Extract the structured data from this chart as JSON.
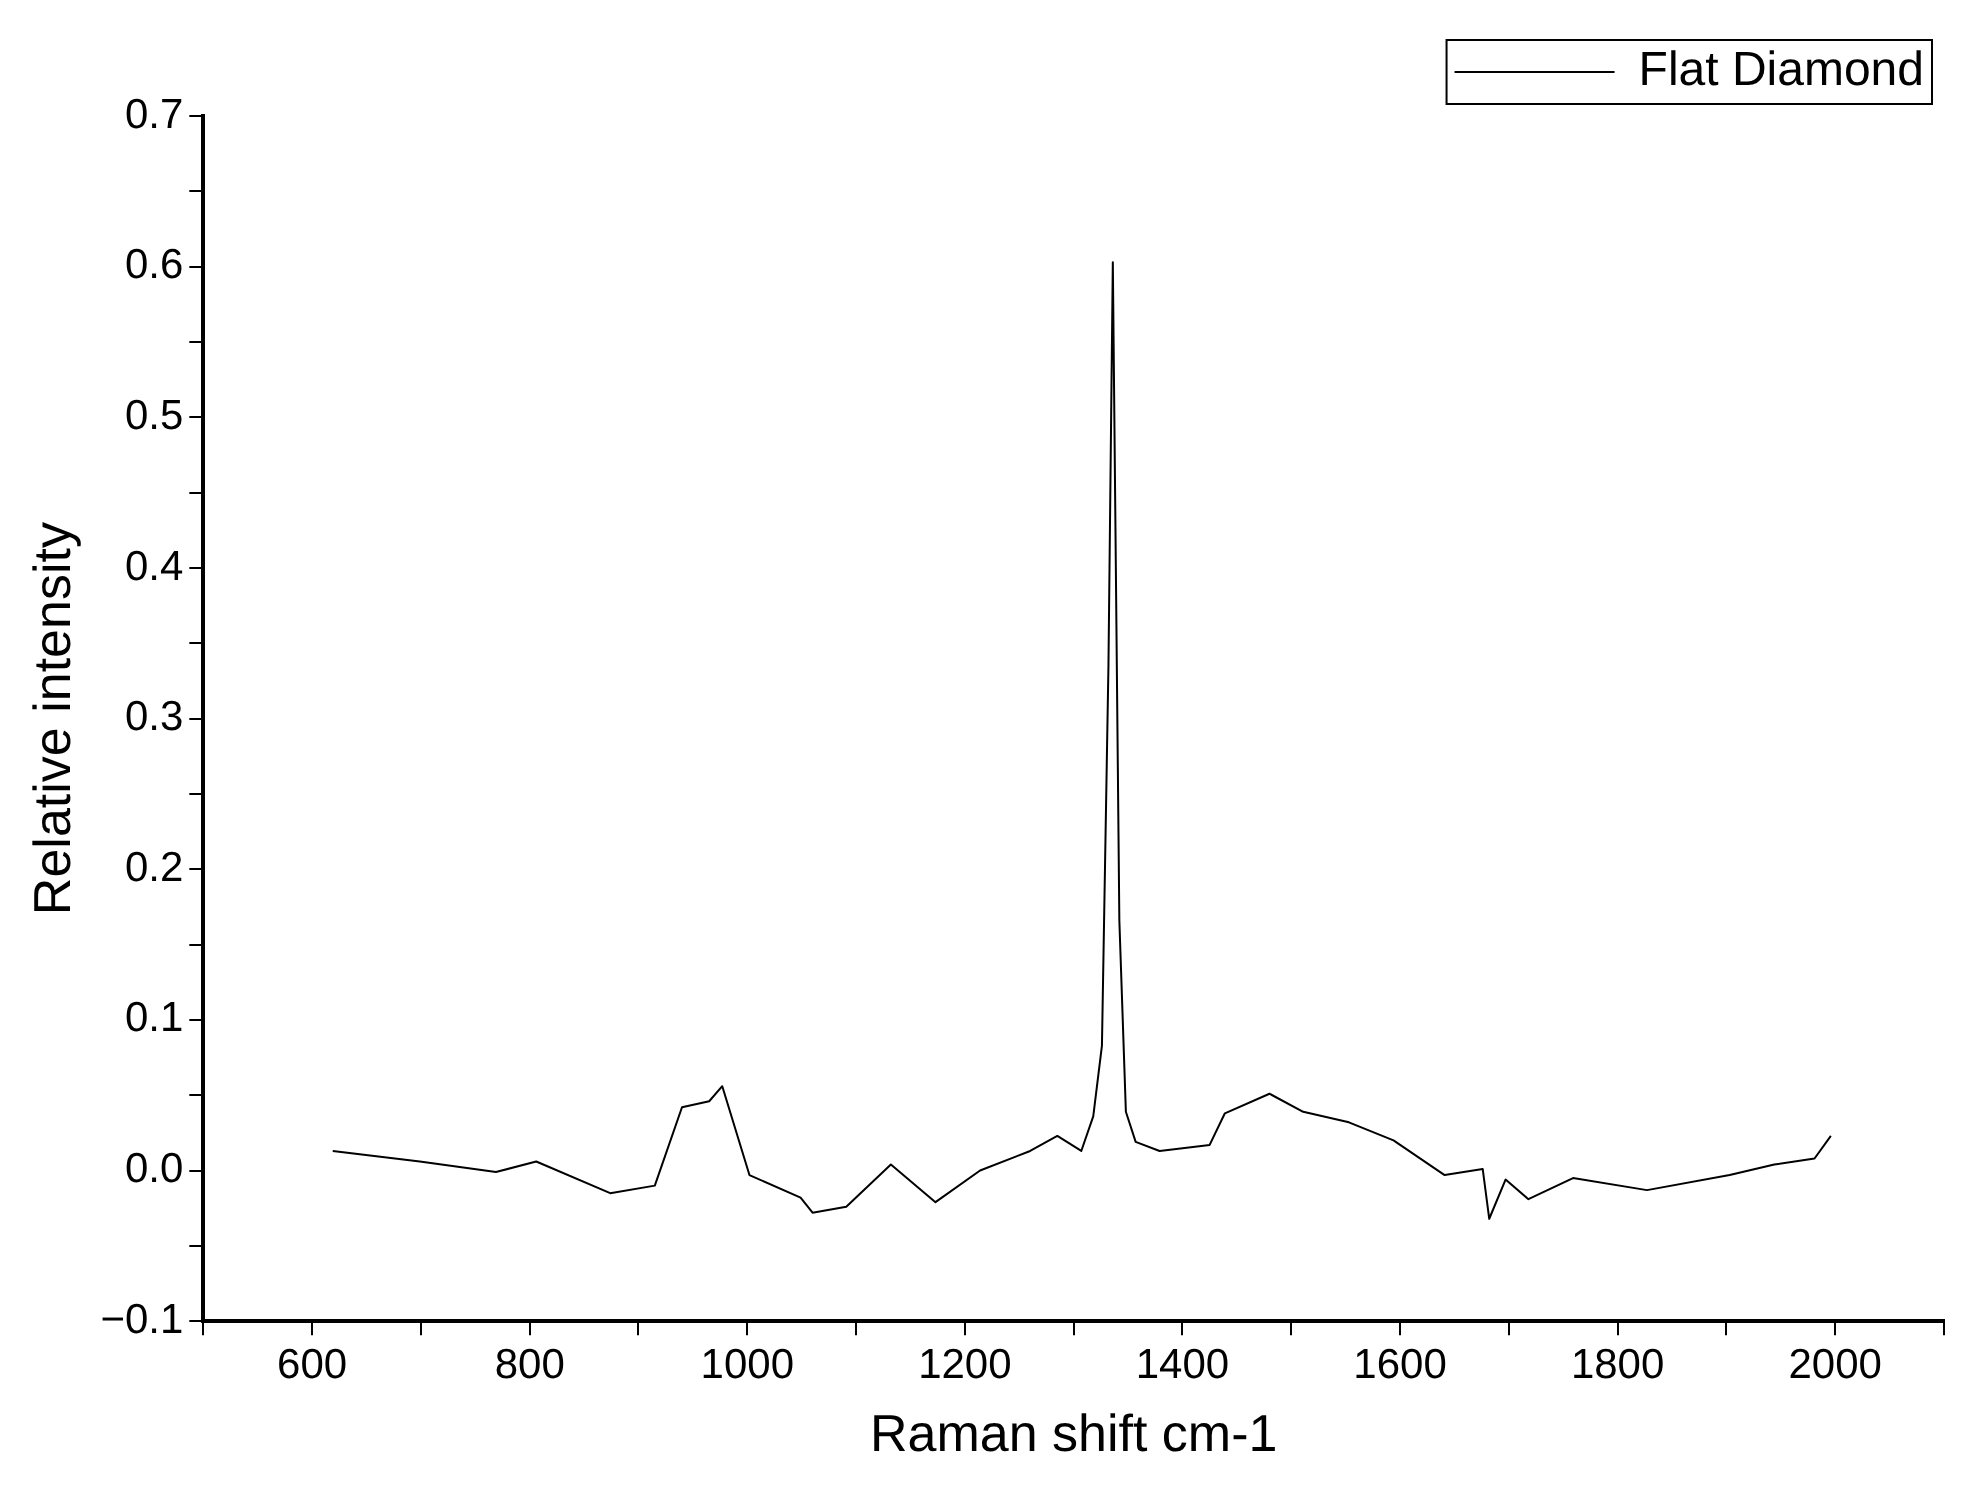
{
  "chart_data": {
    "type": "line",
    "xlabel": "Raman shift cm-1",
    "ylabel": "Relative intensity",
    "xlim": [
      500,
      2100
    ],
    "ylim": [
      -0.1,
      0.7
    ],
    "xticks": [
      {
        "value": 500,
        "label": null
      },
      600,
      {
        "value": 700,
        "label": null
      },
      800,
      {
        "value": 900,
        "label": null
      },
      1000,
      {
        "value": 1100,
        "label": null
      },
      1200,
      {
        "value": 1300,
        "label": null
      },
      1400,
      {
        "value": 1500,
        "label": null
      },
      1600,
      {
        "value": 1700,
        "label": null
      },
      1800,
      {
        "value": 1900,
        "label": null
      },
      2000,
      {
        "value": 2100,
        "label": null
      }
    ],
    "yticks": [
      {
        "value": -0.1,
        "label": "−0.1"
      },
      {
        "value": -0.05,
        "label": null
      },
      {
        "value": 0,
        "label": "0.0"
      },
      {
        "value": 0.05,
        "label": null
      },
      0.1,
      {
        "value": 0.15,
        "label": null
      },
      0.2,
      {
        "value": 0.25,
        "label": null
      },
      0.3,
      {
        "value": 0.35,
        "label": null
      },
      0.4,
      {
        "value": 0.45,
        "label": null
      },
      0.5,
      {
        "value": 0.55,
        "label": null
      },
      0.6,
      {
        "value": 0.65,
        "label": null
      },
      0.7
    ],
    "grid": false,
    "legend": "top right",
    "marker": "none",
    "line_style": "solid",
    "series": [
      {
        "name": "Flat Diamond",
        "color": "#000000",
        "x": [
          619,
          699,
          769,
          806,
          874,
          915,
          940,
          965,
          977,
          1002,
          1049,
          1060,
          1091,
          1132,
          1173,
          1214,
          1260,
          1285,
          1307,
          1318,
          1326,
          1332,
          1336,
          1342,
          1348,
          1357,
          1379,
          1425,
          1439,
          1480,
          1511,
          1553,
          1594,
          1641,
          1676,
          1682,
          1697,
          1718,
          1759,
          1827,
          1903,
          1944,
          1981,
          1996
        ],
        "values": [
          0.013,
          0.006,
          -0.001,
          0.006,
          -0.015,
          -0.01,
          0.042,
          0.046,
          0.056,
          -0.003,
          -0.018,
          -0.028,
          -0.024,
          0.004,
          -0.021,
          0.0,
          0.013,
          0.023,
          0.013,
          0.036,
          0.083,
          0.336,
          0.603,
          0.166,
          0.039,
          0.019,
          0.013,
          0.017,
          0.038,
          0.051,
          0.039,
          0.032,
          0.02,
          -0.003,
          0.001,
          -0.032,
          -0.006,
          -0.019,
          -0.005,
          -0.013,
          -0.003,
          0.004,
          0.008,
          0.023
        ]
      }
    ]
  }
}
